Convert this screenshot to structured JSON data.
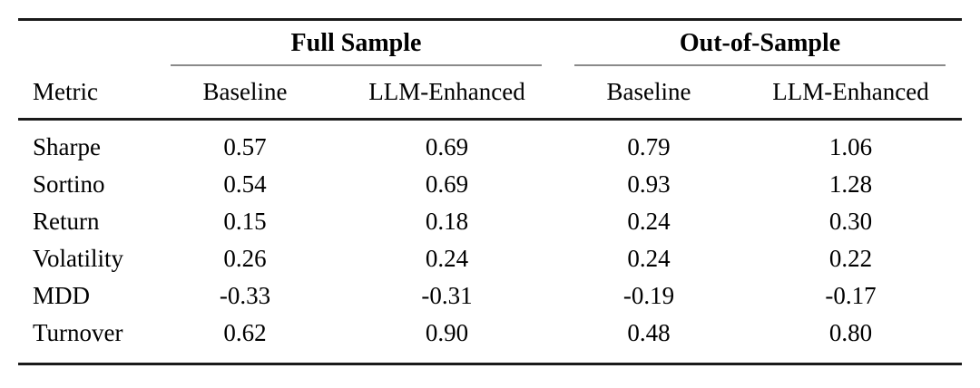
{
  "table": {
    "group_headers": [
      {
        "label": "Full Sample",
        "colspan": 2
      },
      {
        "label": "Out-of-Sample",
        "colspan": 2
      }
    ],
    "columns": [
      "Metric",
      "Baseline",
      "LLM-Enhanced",
      "Baseline",
      "LLM-Enhanced"
    ],
    "rows": [
      {
        "metric": "Sharpe",
        "values": [
          "0.57",
          "0.69",
          "0.79",
          "1.06"
        ]
      },
      {
        "metric": "Sortino",
        "values": [
          "0.54",
          "0.69",
          "0.93",
          "1.28"
        ]
      },
      {
        "metric": "Return",
        "values": [
          "0.15",
          "0.18",
          "0.24",
          "0.30"
        ]
      },
      {
        "metric": "Volatility",
        "values": [
          "0.26",
          "0.24",
          "0.24",
          "0.22"
        ]
      },
      {
        "metric": "MDD",
        "values": [
          "-0.33",
          "-0.31",
          "-0.19",
          "-0.17"
        ]
      },
      {
        "metric": "Turnover",
        "values": [
          "0.62",
          "0.90",
          "0.48",
          "0.80"
        ]
      }
    ]
  },
  "colors": {
    "background": "#ffffff",
    "text": "#000000",
    "rule_heavy": "#1a1a1a",
    "rule_light": "#8a8a8a"
  }
}
